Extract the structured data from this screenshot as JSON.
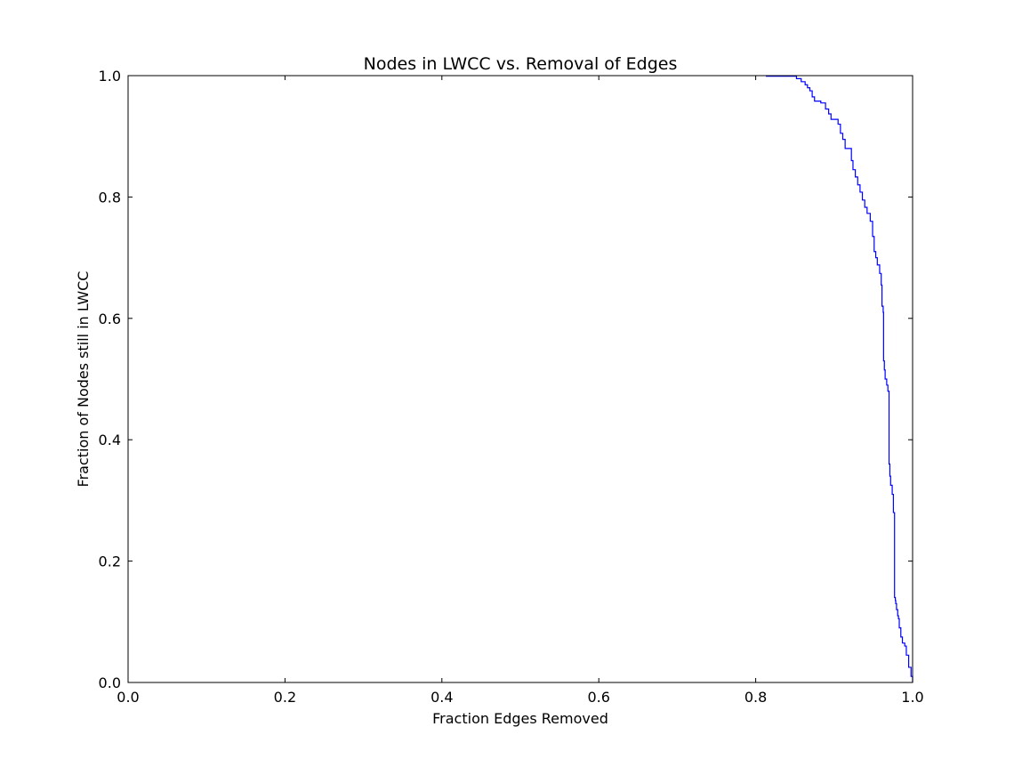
{
  "chart_data": {
    "type": "line",
    "title": "Nodes in LWCC vs. Removal of Edges",
    "xlabel": "Fraction Edges Removed",
    "ylabel": "Fraction of Nodes still in LWCC",
    "xlim": [
      0.0,
      1.0
    ],
    "ylim": [
      0.0,
      1.0
    ],
    "xticks": [
      "0.0",
      "0.2",
      "0.4",
      "0.6",
      "0.8",
      "1.0"
    ],
    "yticks": [
      "0.0",
      "0.2",
      "0.4",
      "0.6",
      "0.8",
      "1.0"
    ],
    "grid": false,
    "line_color": "#0000ff",
    "series": [
      {
        "x": [
          0.813,
          0.847,
          0.852,
          0.858,
          0.863,
          0.866,
          0.869,
          0.872,
          0.875,
          0.883,
          0.889,
          0.893,
          0.896,
          0.905,
          0.908,
          0.911,
          0.914,
          0.922,
          0.924,
          0.927,
          0.93,
          0.933,
          0.936,
          0.939,
          0.942,
          0.946,
          0.949,
          0.951,
          0.953,
          0.955,
          0.958,
          0.96,
          0.961,
          0.9625,
          0.963,
          0.964,
          0.965,
          0.967,
          0.9685,
          0.97,
          0.971,
          0.972,
          0.974,
          0.9755,
          0.977,
          0.978,
          0.9785,
          0.9795,
          0.981,
          0.982,
          0.983,
          0.985,
          0.987,
          0.99,
          0.992,
          0.995,
          0.998,
          1.0
        ],
        "y": [
          0.999,
          0.999,
          0.995,
          0.99,
          0.985,
          0.98,
          0.975,
          0.965,
          0.958,
          0.955,
          0.945,
          0.937,
          0.928,
          0.92,
          0.905,
          0.895,
          0.88,
          0.86,
          0.845,
          0.833,
          0.82,
          0.808,
          0.795,
          0.783,
          0.773,
          0.76,
          0.735,
          0.71,
          0.7,
          0.688,
          0.674,
          0.655,
          0.62,
          0.61,
          0.53,
          0.515,
          0.5,
          0.49,
          0.48,
          0.36,
          0.34,
          0.325,
          0.31,
          0.28,
          0.14,
          0.135,
          0.13,
          0.12,
          0.11,
          0.105,
          0.09,
          0.075,
          0.065,
          0.06,
          0.045,
          0.025,
          0.01,
          0.0
        ]
      }
    ]
  }
}
